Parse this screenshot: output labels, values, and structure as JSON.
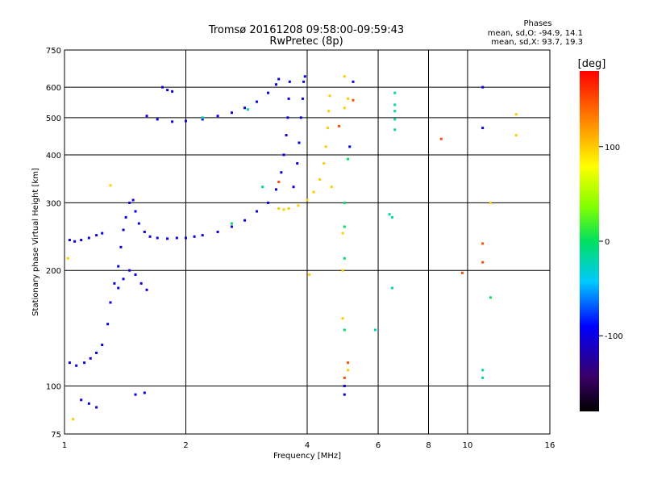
{
  "chart_data": {
    "type": "scatter",
    "title": "Tromsø 20161208 09:58:00-09:59:43",
    "subtitle": "RwPretec (8p)",
    "xlabel": "Frequency [MHz]",
    "ylabel": "Stationary phase Virtual Height [km]",
    "x_scale": "log",
    "y_scale": "log",
    "xlim": [
      1,
      16
    ],
    "ylim": [
      75,
      750
    ],
    "x_ticks": [
      1,
      2,
      4,
      6,
      8,
      10,
      16
    ],
    "y_ticks": [
      75,
      100,
      200,
      300,
      400,
      500,
      600,
      750
    ],
    "grid": true,
    "stats_title": "Phases",
    "stats": [
      "mean, sd,O: -94.9, 14.1",
      "mean, sd,X:  93.7, 19.3"
    ],
    "colorbar": {
      "label": "[deg]",
      "range": [
        -180,
        180
      ],
      "ticks": [
        100,
        0,
        -100
      ]
    },
    "series": [
      {
        "values": [
          [
            1.03,
            240,
            -100
          ],
          [
            1.06,
            238,
            -100
          ],
          [
            1.1,
            240,
            -100
          ],
          [
            1.15,
            243,
            -100
          ],
          [
            1.2,
            247,
            -100
          ],
          [
            1.24,
            250,
            -100
          ],
          [
            1.03,
            115,
            -100
          ],
          [
            1.07,
            113,
            -100
          ],
          [
            1.12,
            115,
            -100
          ],
          [
            1.16,
            118,
            -100
          ],
          [
            1.2,
            122,
            -100
          ],
          [
            1.24,
            128,
            -100
          ],
          [
            1.28,
            145,
            -100
          ],
          [
            1.3,
            165,
            -100
          ],
          [
            1.33,
            185,
            -100
          ],
          [
            1.36,
            205,
            -100
          ],
          [
            1.38,
            230,
            -100
          ],
          [
            1.4,
            255,
            -100
          ],
          [
            1.42,
            275,
            -100
          ],
          [
            1.45,
            300,
            -100
          ],
          [
            1.48,
            305,
            -100
          ],
          [
            1.5,
            285,
            -100
          ],
          [
            1.53,
            265,
            -100
          ],
          [
            1.58,
            252,
            -100
          ],
          [
            1.36,
            180,
            -100
          ],
          [
            1.4,
            190,
            -100
          ],
          [
            1.45,
            200,
            -100
          ],
          [
            1.5,
            195,
            -100
          ],
          [
            1.55,
            185,
            -100
          ],
          [
            1.6,
            178,
            -100
          ],
          [
            1.63,
            245,
            -100
          ],
          [
            1.7,
            243,
            -100
          ],
          [
            1.8,
            242,
            -100
          ],
          [
            1.9,
            243,
            -100
          ],
          [
            2.0,
            243,
            -100
          ],
          [
            2.1,
            245,
            -100
          ],
          [
            2.2,
            247,
            -100
          ],
          [
            2.4,
            252,
            -100
          ],
          [
            2.6,
            260,
            -100
          ],
          [
            2.8,
            270,
            -100
          ],
          [
            3.0,
            285,
            -100
          ],
          [
            3.2,
            300,
            -100
          ],
          [
            3.35,
            325,
            -100
          ],
          [
            3.45,
            360,
            -100
          ],
          [
            3.5,
            400,
            -100
          ],
          [
            3.55,
            450,
            -100
          ],
          [
            3.58,
            500,
            -100
          ],
          [
            3.6,
            560,
            -100
          ],
          [
            3.62,
            620,
            -100
          ],
          [
            3.7,
            330,
            -100
          ],
          [
            3.78,
            380,
            -100
          ],
          [
            3.82,
            430,
            -100
          ],
          [
            3.86,
            500,
            -100
          ],
          [
            3.9,
            560,
            -100
          ],
          [
            3.92,
            620,
            -100
          ],
          [
            3.95,
            640,
            -100
          ],
          [
            1.6,
            505,
            -100
          ],
          [
            1.7,
            495,
            -100
          ],
          [
            1.85,
            488,
            -100
          ],
          [
            2.0,
            490,
            -100
          ],
          [
            2.2,
            495,
            -100
          ],
          [
            2.4,
            505,
            -100
          ],
          [
            2.6,
            515,
            -100
          ],
          [
            2.8,
            530,
            -100
          ],
          [
            3.0,
            550,
            -100
          ],
          [
            3.2,
            580,
            -100
          ],
          [
            3.35,
            610,
            -100
          ],
          [
            3.4,
            630,
            -100
          ],
          [
            1.75,
            600,
            -100
          ],
          [
            1.8,
            590,
            -100
          ],
          [
            1.85,
            585,
            -100
          ],
          [
            1.1,
            92,
            -100
          ],
          [
            1.15,
            90,
            -100
          ],
          [
            1.2,
            88,
            -100
          ],
          [
            1.5,
            95,
            -100
          ],
          [
            1.58,
            96,
            -100
          ],
          [
            4.95,
            100,
            -100
          ],
          [
            4.95,
            95,
            -100
          ],
          [
            5.2,
            620,
            -100
          ],
          [
            5.1,
            420,
            -100
          ],
          [
            10.9,
            470,
            -100
          ],
          [
            10.9,
            600,
            -100
          ]
        ]
      },
      {
        "values": [
          [
            3.4,
            290,
            100
          ],
          [
            3.5,
            288,
            100
          ],
          [
            3.6,
            290,
            100
          ],
          [
            3.8,
            295,
            100
          ],
          [
            4.0,
            305,
            100
          ],
          [
            4.15,
            320,
            100
          ],
          [
            4.3,
            345,
            100
          ],
          [
            4.4,
            380,
            100
          ],
          [
            4.45,
            420,
            100
          ],
          [
            4.5,
            470,
            100
          ],
          [
            4.52,
            520,
            100
          ],
          [
            4.55,
            570,
            100
          ],
          [
            4.6,
            330,
            100
          ],
          [
            4.9,
            250,
            100
          ],
          [
            4.9,
            200,
            100
          ],
          [
            4.9,
            150,
            100
          ],
          [
            4.95,
            530,
            100
          ],
          [
            4.95,
            640,
            100
          ],
          [
            5.05,
            560,
            100
          ],
          [
            5.05,
            110,
            100
          ],
          [
            13.2,
            450,
            100
          ],
          [
            13.2,
            510,
            100
          ],
          [
            11.4,
            300,
            100
          ],
          [
            1.05,
            82,
            100
          ],
          [
            1.02,
            215,
            100
          ],
          [
            1.3,
            333,
            100
          ],
          [
            4.05,
            195,
            100
          ]
        ]
      },
      {
        "values": [
          [
            6.6,
            580,
            -20
          ],
          [
            6.6,
            540,
            -20
          ],
          [
            6.6,
            520,
            -20
          ],
          [
            6.6,
            495,
            -20
          ],
          [
            6.6,
            465,
            -20
          ],
          [
            6.4,
            280,
            -20
          ],
          [
            6.5,
            275,
            -20
          ],
          [
            6.5,
            180,
            -20
          ],
          [
            5.9,
            140,
            -20
          ],
          [
            10.9,
            110,
            -20
          ],
          [
            10.9,
            105,
            -20
          ],
          [
            3.1,
            330,
            -20
          ],
          [
            2.85,
            525,
            -20
          ],
          [
            2.2,
            500,
            -20
          ]
        ]
      },
      {
        "values": [
          [
            4.95,
            300,
            0
          ],
          [
            4.95,
            260,
            0
          ],
          [
            4.95,
            215,
            0
          ],
          [
            4.95,
            140,
            0
          ],
          [
            5.05,
            390,
            0
          ],
          [
            11.4,
            170,
            0
          ],
          [
            2.6,
            265,
            0
          ]
        ]
      },
      {
        "values": [
          [
            8.6,
            440,
            150
          ],
          [
            5.2,
            555,
            150
          ],
          [
            4.8,
            475,
            150
          ],
          [
            5.05,
            115,
            150
          ],
          [
            4.95,
            105,
            150
          ],
          [
            10.9,
            210,
            150
          ],
          [
            10.9,
            235,
            150
          ],
          [
            9.7,
            197,
            150
          ],
          [
            3.4,
            340,
            150
          ]
        ]
      }
    ]
  }
}
